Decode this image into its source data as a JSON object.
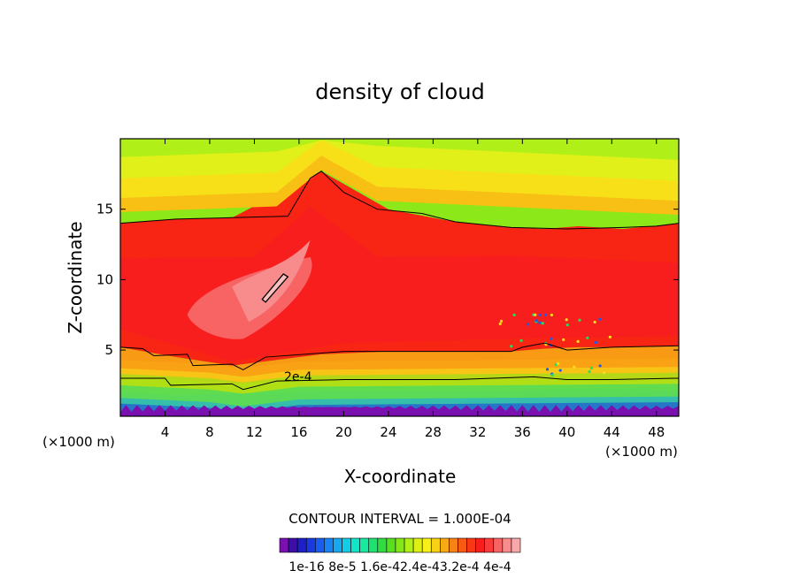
{
  "chart_data": {
    "type": "heatmap",
    "title": "density of cloud",
    "xlabel": "X-coordinate",
    "ylabel": "Z-coordinate",
    "x_unit_left": "(×1000 m)",
    "x_unit_right": "(×1000 m)",
    "xlim": [
      0,
      50
    ],
    "ylim": [
      0.3,
      20
    ],
    "xticks": [
      4,
      8,
      12,
      16,
      20,
      24,
      28,
      32,
      36,
      40,
      44,
      48
    ],
    "yticks": [
      5,
      10,
      15
    ],
    "contour_interval_text": "CONTOUR INTERVAL = 1.000E-04",
    "contour_label": "2e-4",
    "colorbar_tick_labels": [
      "1e-16",
      "8e-5",
      "1.6e-4",
      "2.4e-4",
      "3.2e-4",
      "4e-4"
    ],
    "colorbar_text": "1e-16 8e-5 1.6e-42.4e-43.2e-4 4e-4",
    "colorbar_colors": [
      "#7a10b0",
      "#3d0fa8",
      "#1f1fc8",
      "#1a3ae0",
      "#1a5cf0",
      "#1a82f4",
      "#18a8f0",
      "#14cce6",
      "#12e6c8",
      "#18e8a0",
      "#20e070",
      "#30dc40",
      "#58e020",
      "#84e818",
      "#b0f018",
      "#dcf014",
      "#f8f018",
      "#f8d014",
      "#f8aa14",
      "#f88214",
      "#f85a14",
      "#f83814",
      "#f81e1e",
      "#f83c3c",
      "#f86464",
      "#f88c8c",
      "#f8a8a8"
    ],
    "bands": [
      {
        "level": 0.0,
        "z_bottom": [
          0.3,
          0.3,
          0.3,
          0.3,
          0.3,
          0.3,
          0.3,
          0.3,
          0.3,
          0.3,
          0.3
        ],
        "z_top": [
          0.55,
          0.5,
          0.55,
          0.6,
          0.6,
          0.6,
          0.6,
          0.6,
          0.6,
          0.6,
          0.55
        ]
      },
      {
        "level": 2e-05,
        "z_bottom": [
          0.55,
          0.5,
          0.55,
          0.6,
          0.6,
          0.6,
          0.6,
          0.6,
          0.6,
          0.6,
          0.55
        ],
        "z_top": [
          1.0,
          0.9,
          1.1,
          1.2,
          1.2,
          1.2,
          1.2,
          1.2,
          1.3,
          1.2,
          1.0
        ]
      },
      {
        "level": 8e-05,
        "z_bottom": [
          1.0,
          0.9,
          1.1,
          1.2,
          1.2,
          1.2,
          1.2,
          1.2,
          1.3,
          1.2,
          1.0
        ],
        "z_top": [
          2.0,
          1.8,
          1.9,
          2.1,
          2.1,
          2.1,
          2.1,
          2.2,
          2.2,
          2.2,
          2.1
        ]
      },
      {
        "level": 0.00016,
        "z_bottom": [
          2.0,
          1.8,
          1.9,
          2.1,
          2.1,
          2.1,
          2.1,
          2.2,
          2.2,
          2.2,
          2.1
        ],
        "z_top": [
          3.0,
          2.9,
          2.6,
          2.9,
          2.9,
          2.9,
          2.9,
          2.9,
          3.1,
          2.9,
          3.0
        ]
      },
      {
        "level": 0.00024,
        "z_bottom": [
          3.0,
          2.9,
          2.6,
          2.9,
          2.9,
          2.9,
          2.9,
          2.9,
          3.1,
          2.9,
          3.0
        ],
        "z_top": [
          5.2,
          4.5,
          3.9,
          4.7,
          4.9,
          4.9,
          4.9,
          5.1,
          5.2,
          5.2,
          5.3
        ]
      },
      {
        "level": 0.00032,
        "z_bottom": [
          5.2,
          4.5,
          3.9,
          4.7,
          4.9,
          4.9,
          4.9,
          5.1,
          5.2,
          5.2,
          5.3
        ],
        "z_top": [
          14.0,
          14.3,
          14.4,
          17.7,
          15.0,
          14.1,
          13.7,
          13.6,
          13.8,
          13.6,
          14.0
        ]
      },
      {
        "level": 0.0004,
        "z_bottom": [
          14.0,
          14.3,
          14.4,
          17.7,
          15.0,
          14.1,
          13.7,
          13.6,
          13.8,
          13.6,
          14.0
        ],
        "z_top": [
          20,
          20,
          20,
          20,
          20,
          20,
          20,
          20,
          20,
          20,
          20
        ]
      }
    ],
    "band_x": [
      0,
      5,
      10,
      18,
      24,
      30,
      35,
      38,
      41,
      45,
      50
    ]
  }
}
